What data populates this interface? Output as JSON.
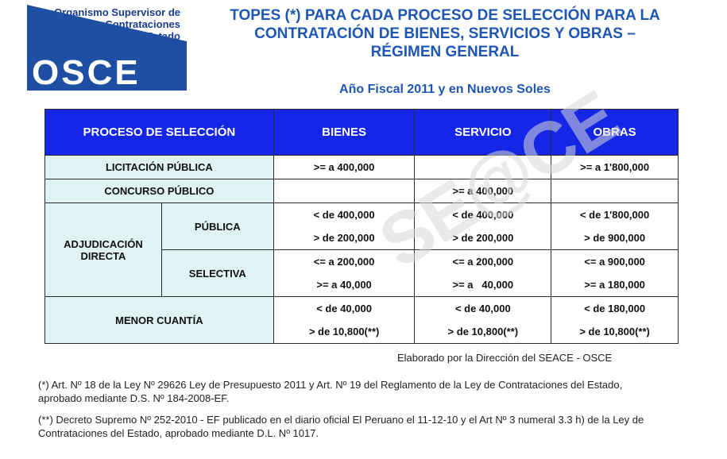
{
  "logo": {
    "org_line1": "Organismo Supervisor de",
    "org_line2": "las Contrataciones",
    "org_line3": "del Estado",
    "acronym": "OSCE",
    "color": "#1e4fa3"
  },
  "title": {
    "line1": "TOPES (*) PARA CADA PROCESO DE SELECCIÓN PARA LA",
    "line2": "CONTRATACIÓN DE BIENES, SERVICIOS Y OBRAS –",
    "line3": "RÉGIMEN GENERAL",
    "subtitle": "Año Fiscal 2011 y en Nuevos Soles"
  },
  "watermark": "SE@CE",
  "table": {
    "headers": {
      "proceso": "PROCESO DE SELECCIÓN",
      "bienes": "BIENES",
      "servicio": "SERVICIO",
      "obras": "OBRAS"
    },
    "licitacion": {
      "label": "LICITACIÓN PÚBLICA",
      "bienes": ">= a 400,000",
      "servicio": "",
      "obras": ">= a 1'800,000"
    },
    "concurso": {
      "label": "CONCURSO PÚBLICO",
      "bienes": "",
      "servicio": ">= a 400,000",
      "obras": ""
    },
    "adjudicacion": {
      "label_line1": "ADJUDICACIÓN",
      "label_line2": "DIRECTA",
      "publica": {
        "label": "PÚBLICA",
        "bienes": [
          "< de 400,000",
          "> de 200,000"
        ],
        "servicio": [
          "< de 400,000",
          "> de 200,000"
        ],
        "obras": [
          "< de 1'800,000",
          "> de 900,000"
        ]
      },
      "selectiva": {
        "label": "SELECTIVA",
        "bienes": [
          "<= a 200,000",
          ">= a 40,000"
        ],
        "servicio": [
          "<= a 200,000",
          ">= a   40,000"
        ],
        "obras": [
          "<= a 900,000",
          ">= a 180,000"
        ]
      }
    },
    "menor": {
      "label": "MENOR CUANTÍA",
      "bienes": [
        "< de 40,000",
        "> de 10,800(**)"
      ],
      "servicio": [
        "< de 40,000",
        "> de 10,800(**)"
      ],
      "obras": [
        "< de 180,000",
        "> de 10,800(**)"
      ]
    }
  },
  "credit": "Elaborado por la Dirección del SEACE - OSCE",
  "notes": {
    "note1": "(*) Art. Nº 18 de la Ley Nº 29626 Ley de Presupuesto 2011 y Art. Nº 19 del Reglamento de la Ley de Contrataciones del Estado, aprobado mediante D.S. Nº 184-2008-EF.",
    "note2": "(**) Decreto Supremo Nº 252-2010 - EF publicado en el diario oficial El Peruano el 11-12-10 y el Art Nº 3 numeral 3.3 h) de la Ley de Contrataciones del Estado, aprobado mediante D.L. Nº 1017."
  },
  "colors": {
    "header_bg": "#1526e6",
    "label_bg": "#dff2f4",
    "title_color": "#1e56b3"
  }
}
